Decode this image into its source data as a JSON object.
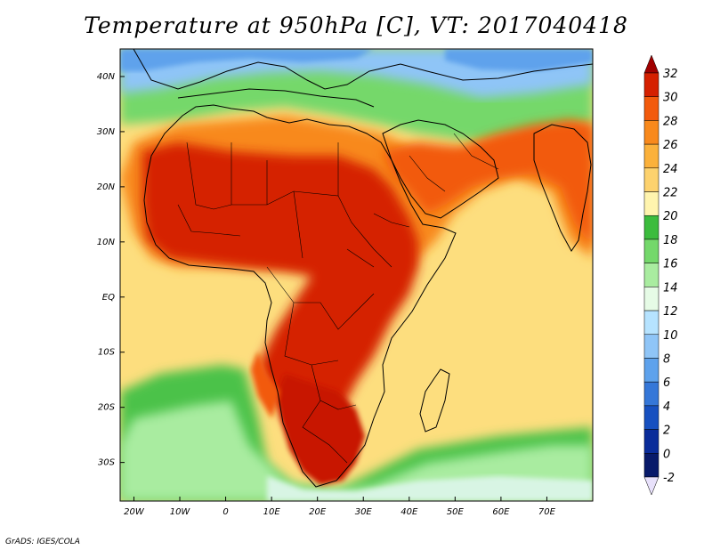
{
  "title": "Temperature at 950hPa [C], VT: 2017040418",
  "footer": "GrADS: IGES/COLA",
  "map": {
    "projection": "latlon",
    "lon_range": [
      -23,
      80
    ],
    "lat_range": [
      -37,
      45
    ],
    "lat_ticks": [
      {
        "value": 40,
        "label": "40N"
      },
      {
        "value": 30,
        "label": "30N"
      },
      {
        "value": 20,
        "label": "20N"
      },
      {
        "value": 10,
        "label": "10N"
      },
      {
        "value": 0,
        "label": "EQ"
      },
      {
        "value": -10,
        "label": "10S"
      },
      {
        "value": -20,
        "label": "20S"
      },
      {
        "value": -30,
        "label": "30S"
      }
    ],
    "lon_ticks": [
      {
        "value": -20,
        "label": "20W"
      },
      {
        "value": -10,
        "label": "10W"
      },
      {
        "value": 0,
        "label": "0"
      },
      {
        "value": 10,
        "label": "10E"
      },
      {
        "value": 20,
        "label": "20E"
      },
      {
        "value": 30,
        "label": "30E"
      },
      {
        "value": 40,
        "label": "40E"
      },
      {
        "value": 50,
        "label": "50E"
      },
      {
        "value": 60,
        "label": "60E"
      },
      {
        "value": 70,
        "label": "70E"
      }
    ],
    "background_color": "#fdde7e",
    "coastline_color": "#000000"
  },
  "colorbar": {
    "labels": [
      "32",
      "30",
      "28",
      "26",
      "24",
      "22",
      "20",
      "18",
      "16",
      "14",
      "12",
      "10",
      "8",
      "6",
      "4",
      "2",
      "0",
      "-2"
    ],
    "colors": [
      "#a00000",
      "#d52000",
      "#f25a0c",
      "#f8891c",
      "#fbb13b",
      "#fdd26e",
      "#fff4ae",
      "#3cbc3d",
      "#74d86b",
      "#a9eca0",
      "#e6fbe6",
      "#b6e3ff",
      "#8fc5f7",
      "#5ea2ec",
      "#3577d8",
      "#1750c0",
      "#0a2c9a",
      "#081a6a",
      "#e8e1fb"
    ]
  }
}
